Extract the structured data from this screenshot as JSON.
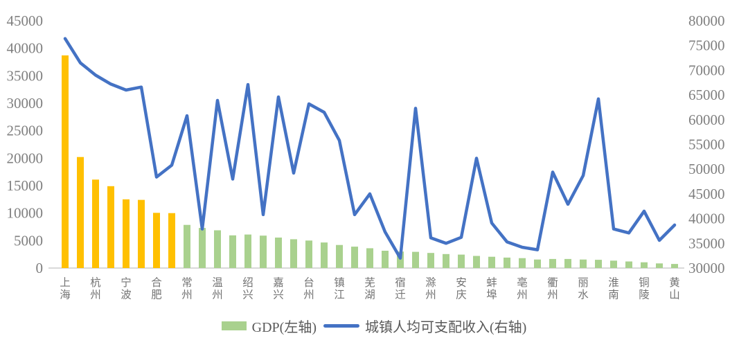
{
  "chart_data": {
    "type": "bar",
    "combo": "bar+line dual axis",
    "title": "",
    "legend_position": "bottom-center",
    "grid": false,
    "categories": [
      "上海",
      "",
      "杭州",
      "",
      "宁波",
      "",
      "合肥",
      "",
      "常州",
      "",
      "温州",
      "",
      "绍兴",
      "",
      "嘉兴",
      "",
      "台州",
      "",
      "镇江",
      "",
      "芜湖",
      "",
      "宿迁",
      "",
      "滁州",
      "",
      "安庆",
      "",
      "蚌埠",
      "",
      "亳州",
      "",
      "衢州",
      "",
      "丽水",
      "",
      "淮南",
      "",
      "铜陵",
      "",
      "黄山"
    ],
    "series": [
      {
        "name": "GDP(左轴)",
        "type": "bar",
        "axis": "left",
        "color": "#A9D18E",
        "highlight_color": "#FFC000",
        "highlight_first_n": 8,
        "values": [
          38700,
          20200,
          16100,
          14900,
          12500,
          12400,
          10050,
          10000,
          7850,
          7300,
          6870,
          5950,
          6100,
          5900,
          5550,
          5250,
          5000,
          4650,
          4200,
          3900,
          3600,
          3150,
          3000,
          2950,
          2750,
          2550,
          2450,
          2200,
          2050,
          1900,
          1800,
          1550,
          1650,
          1650,
          1550,
          1500,
          1350,
          1200,
          1050,
          850,
          750
        ]
      },
      {
        "name": "城镇人均可支配收入(右轴)",
        "type": "line",
        "axis": "right",
        "color": "#4472C4",
        "values": [
          76400,
          71500,
          69000,
          67200,
          66000,
          66600,
          48400,
          50800,
          60800,
          37900,
          63900,
          48000,
          67100,
          40800,
          64600,
          49200,
          63200,
          61500,
          55800,
          40800,
          45000,
          37300,
          32000,
          62300,
          36100,
          35000,
          36200,
          52200,
          39100,
          35300,
          34200,
          33700,
          49400,
          42900,
          48700,
          64200,
          37900,
          37100,
          41500,
          35600,
          38700
        ]
      }
    ],
    "left_axis": {
      "min": 0,
      "max": 45000,
      "step": 5000,
      "ticks": [
        "0",
        "5000",
        "10000",
        "15000",
        "20000",
        "25000",
        "30000",
        "35000",
        "40000",
        "45000"
      ]
    },
    "right_axis": {
      "min": 30000,
      "max": 80000,
      "step": 5000,
      "ticks": [
        "30000",
        "35000",
        "40000",
        "45000",
        "50000",
        "55000",
        "60000",
        "65000",
        "70000",
        "75000",
        "80000"
      ]
    },
    "colors": {
      "baseline": "#D9D9D9",
      "tick_text": "#7F7F7F",
      "category_text": "#737373"
    }
  }
}
